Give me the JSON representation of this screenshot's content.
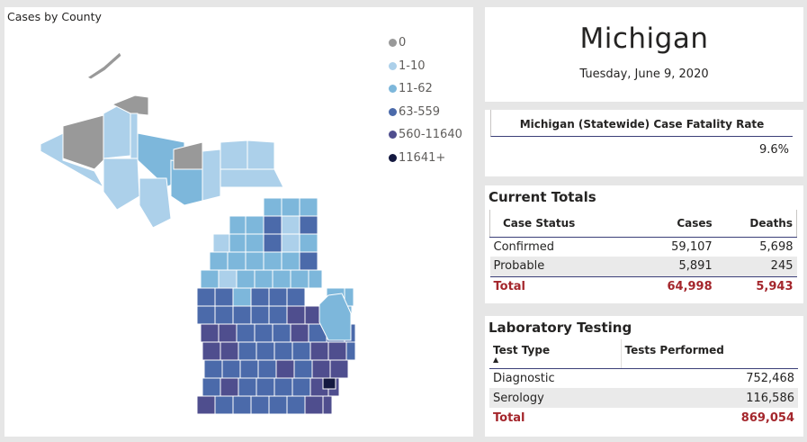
{
  "map": {
    "title": "Cases by County",
    "legend": [
      {
        "label": "0",
        "color": "#999999"
      },
      {
        "label": "1-10",
        "color": "#acd0ea"
      },
      {
        "label": "11-62",
        "color": "#7db7db"
      },
      {
        "label": "63-559",
        "color": "#4b6aaa"
      },
      {
        "label": "560-11640",
        "color": "#4f4e8e"
      },
      {
        "label": "11641+",
        "color": "#141940"
      }
    ]
  },
  "header": {
    "state": "Michigan",
    "date": "Tuesday, June 9, 2020"
  },
  "fatality": {
    "header": "Michigan (Statewide) Case Fatality Rate",
    "value": "9.6%"
  },
  "current_totals": {
    "title": "Current Totals",
    "columns": [
      "Case Status",
      "Cases",
      "Deaths"
    ],
    "rows": [
      {
        "status": "Confirmed",
        "cases": "59,107",
        "deaths": "5,698"
      },
      {
        "status": "Probable",
        "cases": "5,891",
        "deaths": "245"
      }
    ],
    "total": {
      "status": "Total",
      "cases": "64,998",
      "deaths": "5,943"
    }
  },
  "lab_testing": {
    "title": "Laboratory Testing",
    "columns": [
      "Test Type",
      "Tests Performed"
    ],
    "sort_indicator": "▲",
    "rows": [
      {
        "type": "Diagnostic",
        "tests": "752,468"
      },
      {
        "type": "Serology",
        "tests": "116,586"
      }
    ],
    "total": {
      "type": "Total",
      "tests": "869,054"
    }
  },
  "colors": {
    "accent_total": "#a4262c",
    "header_rule": "#3b3f78",
    "background": "#e6e6e6"
  }
}
